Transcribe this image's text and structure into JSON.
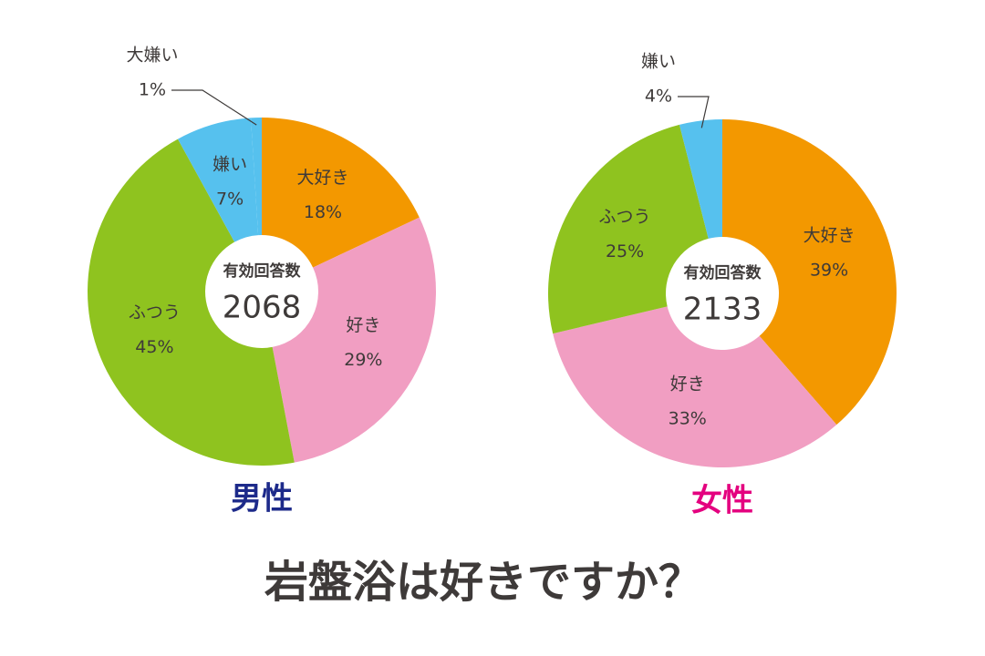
{
  "title": "岩盤浴は好きですか？",
  "chart_data": [
    {
      "type": "pie",
      "title": "男性",
      "title_color": "#1d2a8a",
      "total_label": "有効回答数",
      "total": 2068,
      "categories": [
        "大好き",
        "好き",
        "ふつう",
        "嫌い",
        "大嫌い"
      ],
      "values": [
        18,
        29,
        45,
        7,
        1
      ],
      "value_labels": [
        "18%",
        "29%",
        "45%",
        "7%",
        "1%"
      ],
      "colors": [
        "#f39800",
        "#f19ec2",
        "#8fc31f",
        "#56c1ee",
        "#56c1ee"
      ]
    },
    {
      "type": "pie",
      "title": "女性",
      "title_color": "#e4007f",
      "total_label": "有効回答数",
      "total": 2133,
      "categories": [
        "大好き",
        "好き",
        "ふつう",
        "嫌い"
      ],
      "values": [
        39,
        33,
        25,
        4
      ],
      "value_labels": [
        "39%",
        "33%",
        "25%",
        "4%"
      ],
      "colors": [
        "#f39800",
        "#f19ec2",
        "#8fc31f",
        "#56c1ee"
      ]
    }
  ]
}
